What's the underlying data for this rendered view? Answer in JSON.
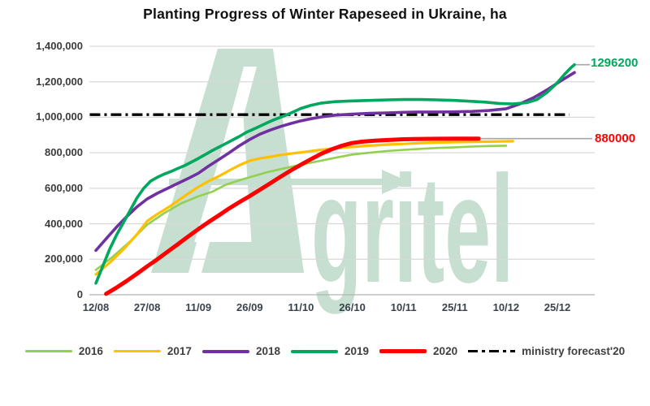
{
  "title": "Planting Progress of Winter Rapeseed in Ukraine, ha",
  "watermark": {
    "text": "gritel",
    "color": "#c6dfd0"
  },
  "chart_data": {
    "type": "line",
    "title": "Planting Progress of Winter Rapeseed in Ukraine, ha",
    "unit": "ha",
    "xlabel": "",
    "ylabel": "",
    "ylim": [
      0,
      1400000
    ],
    "grid": true,
    "legend_position": "bottom",
    "x_unit": "days since 12/08",
    "x_ticks": [
      {
        "label": "12/08",
        "day": 0
      },
      {
        "label": "27/08",
        "day": 15
      },
      {
        "label": "11/09",
        "day": 30
      },
      {
        "label": "26/09",
        "day": 45
      },
      {
        "label": "11/10",
        "day": 60
      },
      {
        "label": "26/10",
        "day": 75
      },
      {
        "label": "10/11",
        "day": 90
      },
      {
        "label": "25/11",
        "day": 105
      },
      {
        "label": "10/12",
        "day": 120
      },
      {
        "label": "25/12",
        "day": 135
      }
    ],
    "y_ticks": [
      {
        "value": 1400000,
        "label": "1,400,000"
      },
      {
        "value": 1200000,
        "label": "1,200,000"
      },
      {
        "value": 1000000,
        "label": "1,000,000"
      },
      {
        "value": 800000,
        "label": "800,000"
      },
      {
        "value": 600000,
        "label": "600,000"
      },
      {
        "value": 400000,
        "label": "400,000"
      },
      {
        "value": 200000,
        "label": "200,000"
      },
      {
        "value": 0,
        "label": "0"
      }
    ],
    "series": [
      {
        "name": "2016",
        "color": "#92d050",
        "width": 2.6,
        "points": [
          [
            0,
            140000
          ],
          [
            5,
            215000
          ],
          [
            10,
            300000
          ],
          [
            15,
            395000
          ],
          [
            20,
            460000
          ],
          [
            25,
            515000
          ],
          [
            30,
            555000
          ],
          [
            34,
            580000
          ],
          [
            38,
            620000
          ],
          [
            42,
            645000
          ],
          [
            45,
            662000
          ],
          [
            50,
            690000
          ],
          [
            55,
            712000
          ],
          [
            60,
            733000
          ],
          [
            65,
            752000
          ],
          [
            70,
            772000
          ],
          [
            75,
            790000
          ],
          [
            80,
            800000
          ],
          [
            85,
            810000
          ],
          [
            90,
            816000
          ],
          [
            95,
            822000
          ],
          [
            100,
            827000
          ],
          [
            105,
            831000
          ],
          [
            110,
            835000
          ],
          [
            115,
            838000
          ],
          [
            120,
            840000
          ]
        ]
      },
      {
        "name": "2017",
        "color": "#ffc000",
        "width": 3.2,
        "points": [
          [
            0,
            115000
          ],
          [
            4,
            180000
          ],
          [
            8,
            255000
          ],
          [
            12,
            340000
          ],
          [
            15,
            415000
          ],
          [
            18,
            455000
          ],
          [
            21,
            490000
          ],
          [
            24,
            530000
          ],
          [
            27,
            570000
          ],
          [
            30,
            608000
          ],
          [
            33,
            640000
          ],
          [
            36,
            668000
          ],
          [
            39,
            700000
          ],
          [
            42,
            730000
          ],
          [
            45,
            755000
          ],
          [
            48,
            768000
          ],
          [
            51,
            777000
          ],
          [
            54,
            788000
          ],
          [
            57,
            795000
          ],
          [
            60,
            802000
          ],
          [
            65,
            815000
          ],
          [
            70,
            825000
          ],
          [
            75,
            833000
          ],
          [
            80,
            840000
          ],
          [
            85,
            846000
          ],
          [
            90,
            850000
          ],
          [
            95,
            855000
          ],
          [
            100,
            858000
          ],
          [
            105,
            860000
          ],
          [
            110,
            862000
          ],
          [
            115,
            863000
          ],
          [
            122,
            865000
          ]
        ]
      },
      {
        "name": "2018",
        "color": "#7030a0",
        "width": 3.6,
        "points": [
          [
            0,
            250000
          ],
          [
            3,
            315000
          ],
          [
            6,
            380000
          ],
          [
            9,
            440000
          ],
          [
            12,
            495000
          ],
          [
            15,
            540000
          ],
          [
            18,
            572000
          ],
          [
            21,
            600000
          ],
          [
            24,
            628000
          ],
          [
            27,
            655000
          ],
          [
            30,
            685000
          ],
          [
            33,
            725000
          ],
          [
            36,
            762000
          ],
          [
            39,
            800000
          ],
          [
            42,
            840000
          ],
          [
            45,
            875000
          ],
          [
            48,
            905000
          ],
          [
            51,
            928000
          ],
          [
            54,
            948000
          ],
          [
            57,
            965000
          ],
          [
            60,
            980000
          ],
          [
            63,
            992000
          ],
          [
            66,
            1002000
          ],
          [
            70,
            1012000
          ],
          [
            75,
            1018000
          ],
          [
            80,
            1022000
          ],
          [
            85,
            1025000
          ],
          [
            90,
            1028000
          ],
          [
            95,
            1030000
          ],
          [
            100,
            1030000
          ],
          [
            105,
            1031000
          ],
          [
            110,
            1033000
          ],
          [
            115,
            1038000
          ],
          [
            120,
            1048000
          ],
          [
            124,
            1075000
          ],
          [
            128,
            1110000
          ],
          [
            132,
            1155000
          ],
          [
            136,
            1205000
          ],
          [
            140,
            1252000
          ]
        ]
      },
      {
        "name": "2019",
        "color": "#00a75f",
        "width": 3.6,
        "points": [
          [
            0,
            65000
          ],
          [
            2,
            160000
          ],
          [
            4,
            255000
          ],
          [
            6,
            335000
          ],
          [
            8,
            405000
          ],
          [
            10,
            475000
          ],
          [
            12,
            545000
          ],
          [
            14,
            600000
          ],
          [
            16,
            640000
          ],
          [
            18,
            662000
          ],
          [
            20,
            680000
          ],
          [
            22,
            695000
          ],
          [
            24,
            712000
          ],
          [
            26,
            728000
          ],
          [
            28,
            748000
          ],
          [
            30,
            768000
          ],
          [
            32,
            790000
          ],
          [
            34,
            812000
          ],
          [
            36,
            832000
          ],
          [
            38,
            852000
          ],
          [
            40,
            872000
          ],
          [
            42,
            892000
          ],
          [
            44,
            915000
          ],
          [
            46,
            932000
          ],
          [
            48,
            950000
          ],
          [
            50,
            968000
          ],
          [
            52,
            985000
          ],
          [
            54,
            1000000
          ],
          [
            56,
            1015000
          ],
          [
            58,
            1032000
          ],
          [
            60,
            1050000
          ],
          [
            63,
            1068000
          ],
          [
            66,
            1080000
          ],
          [
            70,
            1088000
          ],
          [
            75,
            1092000
          ],
          [
            80,
            1095000
          ],
          [
            85,
            1098000
          ],
          [
            90,
            1100000
          ],
          [
            95,
            1100000
          ],
          [
            100,
            1098000
          ],
          [
            105,
            1095000
          ],
          [
            110,
            1090000
          ],
          [
            114,
            1085000
          ],
          [
            118,
            1078000
          ],
          [
            122,
            1075000
          ],
          [
            126,
            1082000
          ],
          [
            129,
            1100000
          ],
          [
            132,
            1140000
          ],
          [
            135,
            1195000
          ],
          [
            137,
            1240000
          ],
          [
            139,
            1280000
          ],
          [
            140,
            1296200
          ]
        ]
      },
      {
        "name": "2020",
        "color": "#ff0000",
        "width": 5,
        "points": [
          [
            3,
            5000
          ],
          [
            6,
            40000
          ],
          [
            9,
            78000
          ],
          [
            12,
            118000
          ],
          [
            15,
            160000
          ],
          [
            18,
            200000
          ],
          [
            21,
            243000
          ],
          [
            24,
            285000
          ],
          [
            27,
            328000
          ],
          [
            30,
            370000
          ],
          [
            33,
            410000
          ],
          [
            36,
            448000
          ],
          [
            39,
            487000
          ],
          [
            42,
            522000
          ],
          [
            45,
            556000
          ],
          [
            48,
            592000
          ],
          [
            51,
            628000
          ],
          [
            54,
            665000
          ],
          [
            57,
            700000
          ],
          [
            60,
            733000
          ],
          [
            63,
            765000
          ],
          [
            66,
            795000
          ],
          [
            69,
            820000
          ],
          [
            72,
            840000
          ],
          [
            75,
            855000
          ],
          [
            78,
            863000
          ],
          [
            82,
            869000
          ],
          [
            86,
            873000
          ],
          [
            90,
            876000
          ],
          [
            95,
            878000
          ],
          [
            100,
            879000
          ],
          [
            106,
            880000
          ],
          [
            112,
            880000
          ]
        ]
      }
    ],
    "forecast_line": {
      "name": "ministry forecast'20",
      "color": "#000000",
      "style": "dash-dot",
      "value": 1015000,
      "x_start_day": -1.8,
      "x_end_day": 138.5
    },
    "annotations": [
      {
        "text": "1296200",
        "color": "#00a75f",
        "series": "2019",
        "value": 1296200
      },
      {
        "text": "880000",
        "color": "#ff0000",
        "series": "2020",
        "value": 880000
      }
    ]
  },
  "legend": {
    "items": [
      {
        "label": "2016",
        "color": "#92d050",
        "height": 3,
        "dash": false
      },
      {
        "label": "2017",
        "color": "#ffc000",
        "height": 3.5,
        "dash": false
      },
      {
        "label": "2018",
        "color": "#7030a0",
        "height": 4,
        "dash": false
      },
      {
        "label": "2019",
        "color": "#00a75f",
        "height": 4,
        "dash": false
      },
      {
        "label": "2020",
        "color": "#ff0000",
        "height": 5.5,
        "dash": false
      },
      {
        "label": "ministry forecast'20",
        "color": "#000000",
        "height": 3.5,
        "dash": true
      }
    ]
  }
}
